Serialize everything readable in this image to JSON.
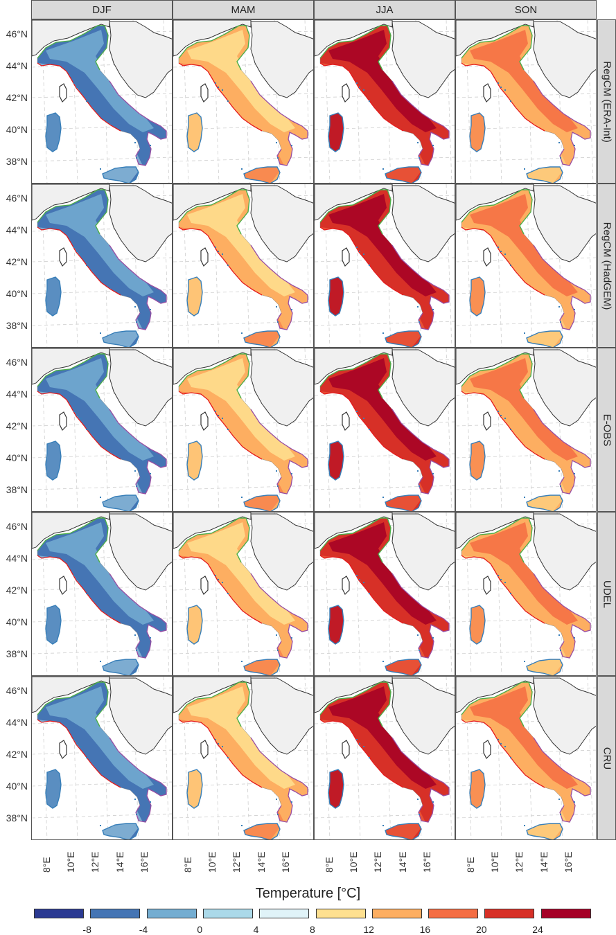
{
  "columns": [
    "DJF",
    "MAM",
    "JJA",
    "SON"
  ],
  "rows": [
    "RegCM (ERA-Int)",
    "RegCM (HadGEM)",
    "E-OBS",
    "UDEL",
    "CRU"
  ],
  "latitude_labels": [
    "46°N",
    "44°N",
    "42°N",
    "40°N",
    "38°N"
  ],
  "longitude_labels": [
    "8°E",
    "10°E",
    "12°E",
    "14°E",
    "16°E"
  ],
  "legend": {
    "title": "Temperature [°C]",
    "ticks": [
      "-8",
      "-4",
      "0",
      "4",
      "8",
      "12",
      "16",
      "20",
      "24"
    ],
    "colors": [
      "#2b3a92",
      "#4575b4",
      "#74add1",
      "#abd9e9",
      "#e0f3f8",
      "#fee090",
      "#fdae61",
      "#f46d43",
      "#d73027",
      "#a50026"
    ]
  },
  "panel_palette": [
    [
      "#4575b4",
      "#74add1",
      "#abd9e9"
    ],
    [
      "#fdae61",
      "#fee090",
      "#f46d43"
    ],
    [
      "#d73027",
      "#a50026",
      "#f46d43"
    ],
    [
      "#fdae61",
      "#f46d43",
      "#fee090"
    ]
  ],
  "region_colors": {
    "north_border": "#4daf4a",
    "west_coast": "#e41a1c",
    "south_border": "#984ea3",
    "islands": "#377eb8",
    "land_bg": "#f0f0f0",
    "coast_line": "#333333"
  }
}
